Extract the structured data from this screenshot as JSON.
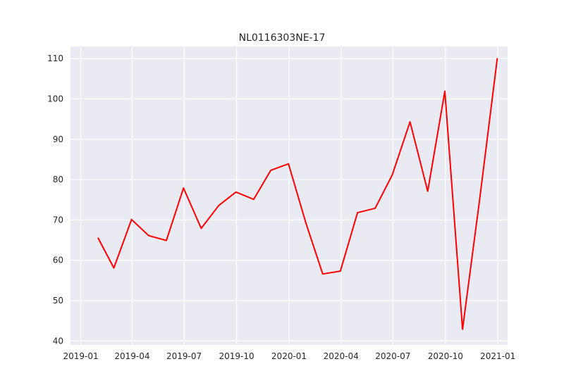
{
  "chart_data": {
    "type": "line",
    "title": "NL0116303NE-17",
    "xlabel": "",
    "ylabel": "",
    "grid": true,
    "x_ticks": [
      "2019-01",
      "2019-04",
      "2019-07",
      "2019-10",
      "2020-01",
      "2020-04",
      "2020-07",
      "2020-10",
      "2021-01"
    ],
    "y_ticks": [
      40,
      50,
      60,
      70,
      80,
      90,
      100,
      110
    ],
    "ylim": [
      39,
      113
    ],
    "xlim": [
      "2018-12-14",
      "2021-01-18"
    ],
    "colors": {
      "line": "#ff0000",
      "plot_bg": "#eaeaf2",
      "grid": "#ffffff"
    },
    "series": [
      {
        "x": [
          "2019-01-31",
          "2019-02-28",
          "2019-03-31",
          "2019-04-30",
          "2019-05-31",
          "2019-06-30",
          "2019-07-31",
          "2019-08-31",
          "2019-09-30",
          "2019-10-31",
          "2019-11-30",
          "2019-12-31",
          "2020-01-31",
          "2020-02-29",
          "2020-03-31",
          "2020-04-30",
          "2020-05-31",
          "2020-06-30",
          "2020-07-31",
          "2020-08-31",
          "2020-09-30",
          "2020-10-31",
          "2020-11-30",
          "2020-12-31"
        ],
        "values": [
          65.6,
          58.1,
          70.1,
          66.1,
          64.9,
          77.9,
          67.9,
          73.6,
          76.9,
          75.1,
          82.3,
          83.9,
          69.0,
          56.6,
          57.3,
          71.8,
          72.9,
          81.2,
          94.3,
          77.1,
          101.9,
          42.9,
          75.0,
          110.1
        ]
      }
    ]
  }
}
